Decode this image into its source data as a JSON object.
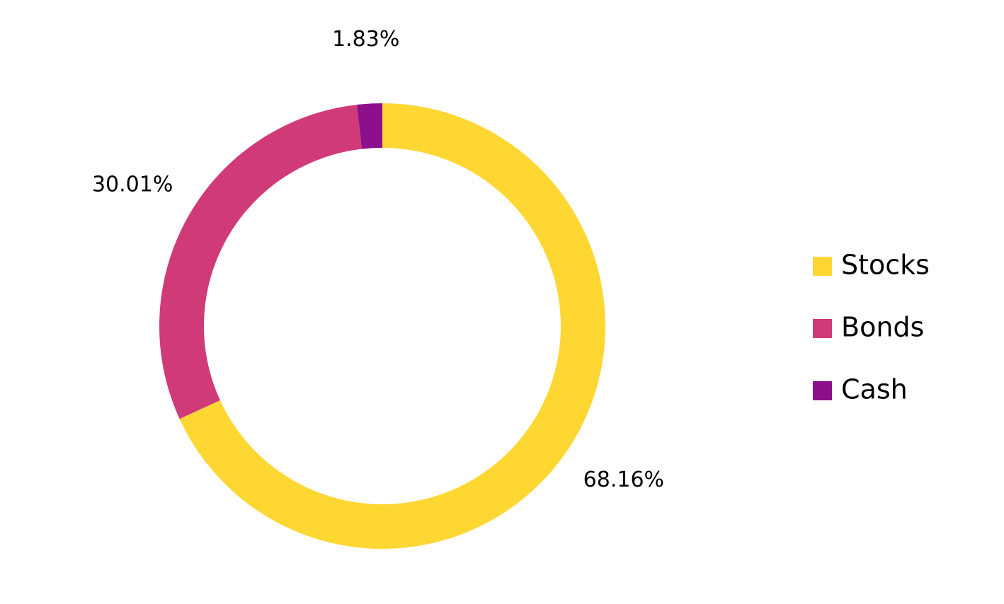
{
  "chart_data": {
    "type": "donut",
    "categories": [
      "Stocks",
      "Bonds",
      "Cash"
    ],
    "values": [
      68.16,
      30.01,
      1.83
    ],
    "value_labels": [
      "68.16%",
      "30.01%",
      "1.83%"
    ],
    "colors": [
      "#fed733",
      "#d03a79",
      "#8c0f8c"
    ],
    "legend": "right"
  }
}
